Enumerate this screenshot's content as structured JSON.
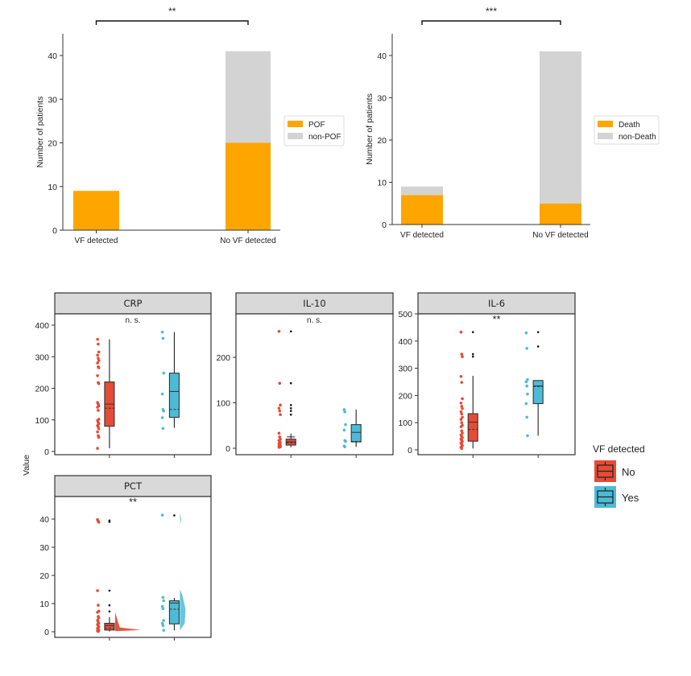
{
  "colors": {
    "orange": "#FFA500",
    "grey": "#D3D3D3",
    "no": "#E64B35",
    "yes": "#4DBBD5",
    "strip_bg": "#D9D9D9",
    "axis": "#333333"
  },
  "chart_data": [
    {
      "type": "bar",
      "stacked": true,
      "title": "",
      "xlabel": "",
      "ylabel": "Number of patients",
      "ylim": [
        0,
        45
      ],
      "yticks": [
        0,
        10,
        20,
        30,
        40
      ],
      "categories": [
        "VF detected",
        "No VF detected"
      ],
      "series": [
        {
          "name": "POF",
          "color": "#FFA500",
          "values": [
            9,
            20
          ]
        },
        {
          "name": "non-POF",
          "color": "#D3D3D3",
          "values": [
            0,
            21
          ]
        }
      ],
      "significance": {
        "label": "**",
        "between": [
          "VF detected",
          "No VF detected"
        ]
      },
      "legend_position": "right"
    },
    {
      "type": "bar",
      "stacked": true,
      "title": "",
      "xlabel": "",
      "ylabel": "Number of patients",
      "ylim": [
        0,
        45
      ],
      "yticks": [
        0,
        10,
        20,
        30,
        40
      ],
      "categories": [
        "VF detected",
        "No VF detected"
      ],
      "series": [
        {
          "name": "Death",
          "color": "#FFA500",
          "values": [
            7,
            5
          ]
        },
        {
          "name": "non-Death",
          "color": "#D3D3D3",
          "values": [
            2,
            36
          ]
        }
      ],
      "significance": {
        "label": "***",
        "between": [
          "VF detected",
          "No VF detected"
        ]
      },
      "legend_position": "right"
    },
    {
      "type": "box",
      "ylabel": "Value",
      "legend": {
        "title": "VF detected",
        "entries": [
          {
            "name": "No",
            "color": "#E64B35"
          },
          {
            "name": "Yes",
            "color": "#4DBBD5"
          }
        ],
        "position": "right"
      },
      "facets": [
        {
          "name": "CRP",
          "significance": "n. s.",
          "ylim": [
            0,
            420
          ],
          "yticks": [
            0,
            100,
            200,
            300,
            400
          ],
          "groups": [
            {
              "name": "No",
              "q1": 80,
              "median": 150,
              "mean": 137,
              "q3": 220,
              "whisker_low": 10,
              "whisker_high": 355,
              "outliers": [],
              "points": [
                355,
                340,
                315,
                305,
                295,
                288,
                280,
                268,
                265,
                240,
                218,
                215,
                155,
                150,
                145,
                140,
                130,
                102,
                98,
                92,
                88,
                82,
                78,
                72,
                62,
                50,
                45,
                10
              ]
            },
            {
              "name": "Yes",
              "q1": 108,
              "median": 190,
              "mean": 133,
              "q3": 248,
              "whisker_low": 75,
              "whisker_high": 378,
              "outliers": [],
              "points": [
                378,
                358,
                248,
                182,
                133,
                128,
                107,
                73
              ]
            }
          ]
        },
        {
          "name": "IL-10",
          "significance": "n. s.",
          "ylim": [
            0,
            270
          ],
          "yticks": [
            0,
            100,
            200
          ],
          "groups": [
            {
              "name": "No",
              "q1": 7,
              "median": 14,
              "mean": 12,
              "q3": 20,
              "whisker_low": 2,
              "whisker_high": 32,
              "outliers": [
                257,
                143,
                95,
                88,
                82,
                74
              ],
              "points": [
                257,
                143,
                95,
                88,
                82,
                74,
                33,
                25,
                20,
                17,
                14,
                12,
                10,
                8,
                6,
                5,
                4,
                3,
                2
              ]
            },
            {
              "name": "Yes",
              "q1": 14,
              "median": 35,
              "mean": 15,
              "q3": 52,
              "whisker_low": 3,
              "whisker_high": 85,
              "outliers": [],
              "points": [
                85,
                80,
                52,
                40,
                17,
                15,
                5,
                3
              ]
            }
          ]
        },
        {
          "name": "IL-6",
          "significance": "**",
          "ylim": [
            0,
            500
          ],
          "yticks": [
            0,
            100,
            200,
            300,
            400,
            500
          ],
          "groups": [
            {
              "name": "No",
              "q1": 32,
              "median": 102,
              "mean": 75,
              "q3": 133,
              "whisker_low": 5,
              "whisker_high": 272,
              "outliers": [
                433,
                352,
                343
              ],
              "points": [
                433,
                352,
                343,
                270,
                248,
                188,
                172,
                160,
                152,
                140,
                132,
                120,
                112,
                100,
                90,
                85,
                70,
                62,
                55,
                50,
                45,
                40,
                35,
                30,
                25,
                20,
                15,
                10,
                5
              ]
            },
            {
              "name": "Yes",
              "q1": 170,
              "median": 235,
              "mean": 233,
              "q3": 255,
              "whisker_low": 52,
              "whisker_high": 255,
              "outliers": [
                433,
                380
              ],
              "points": [
                430,
                373,
                258,
                250,
                235,
                205,
                170,
                120,
                52
              ]
            }
          ]
        },
        {
          "name": "PCT",
          "significance": "**",
          "ylim": [
            0,
            47
          ],
          "yticks": [
            0,
            10,
            20,
            30,
            40
          ],
          "groups": [
            {
              "name": "No",
              "q1": 0.6,
              "median": 2.2,
              "mean": 1.2,
              "q3": 3.0,
              "whisker_low": 0.1,
              "whisker_high": 5.2,
              "outliers": [
                39.5,
                39.0,
                14.6,
                9.4,
                7.2
              ],
              "points": [
                39.8,
                39.2,
                38.9,
                14.6,
                9.4,
                7.3,
                6.9,
                5.4,
                4.9,
                4.1,
                3.6,
                3.0,
                2.6,
                2.1,
                1.7,
                1.2,
                0.8,
                0.5,
                0.3,
                0.1
              ]
            },
            {
              "name": "Yes",
              "q1": 2.8,
              "median": 10.2,
              "mean": 8.0,
              "q3": 11.0,
              "whisker_low": 0.5,
              "whisker_high": 12.0,
              "outliers": [
                41.3
              ],
              "points": [
                41.4,
                12.2,
                11.0,
                9.0,
                8.2,
                4.0,
                3.0,
                2.2,
                0.5
              ]
            }
          ]
        }
      ]
    }
  ]
}
